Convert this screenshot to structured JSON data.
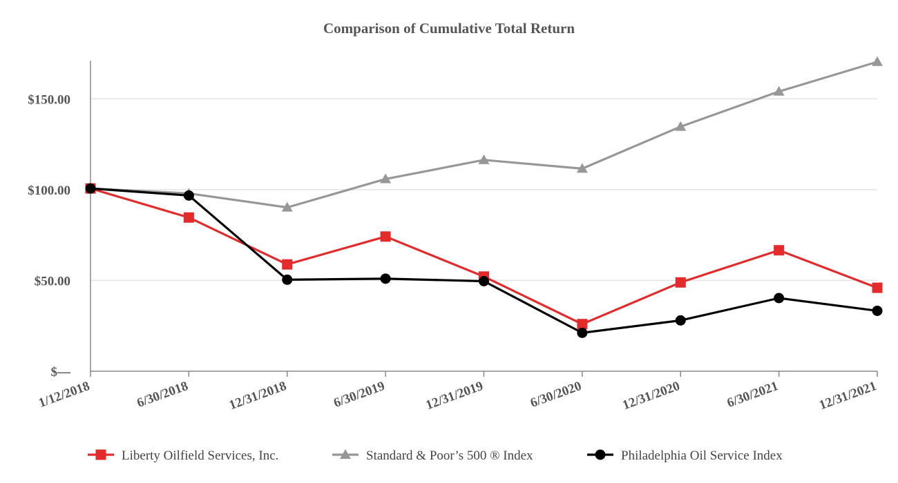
{
  "chart_data": {
    "type": "line",
    "title": "Comparison of Cumulative Total Return",
    "categories": [
      "1/12/2018",
      "6/30/2018",
      "12/31/2018",
      "6/30/2019",
      "12/31/2019",
      "6/30/2020",
      "12/31/2020",
      "6/30/2021",
      "12/31/2021"
    ],
    "y_ticks": [
      {
        "value": 0,
        "label": "$—"
      },
      {
        "value": 50,
        "label": "$50.00"
      },
      {
        "value": 100,
        "label": "$100.00"
      },
      {
        "value": 150,
        "label": "$150.00"
      }
    ],
    "ylim": [
      0,
      171
    ],
    "grid": true,
    "xlabel": "",
    "ylabel": "",
    "legend_position": "bottom",
    "series": [
      {
        "name": "Liberty Oilfield Services, Inc.",
        "color": "#e32b2b",
        "marker": "square",
        "values": [
          100.65,
          84.65,
          58.82,
          74.17,
          52.14,
          25.97,
          48.91,
          66.61,
          45.95
        ]
      },
      {
        "name": "Standard & Poor’s 500 ® Index",
        "color": "#979797",
        "marker": "triangle",
        "values": [
          100.65,
          97.92,
          90.21,
          105.84,
          116.34,
          111.58,
          134.68,
          154.04,
          170.38
        ]
      },
      {
        "name": "Philadelphia Oil Service Index",
        "color": "#000000",
        "marker": "circle",
        "values": [
          100.65,
          96.77,
          50.4,
          50.98,
          49.59,
          21.14,
          27.98,
          40.28,
          33.26
        ]
      }
    ]
  }
}
